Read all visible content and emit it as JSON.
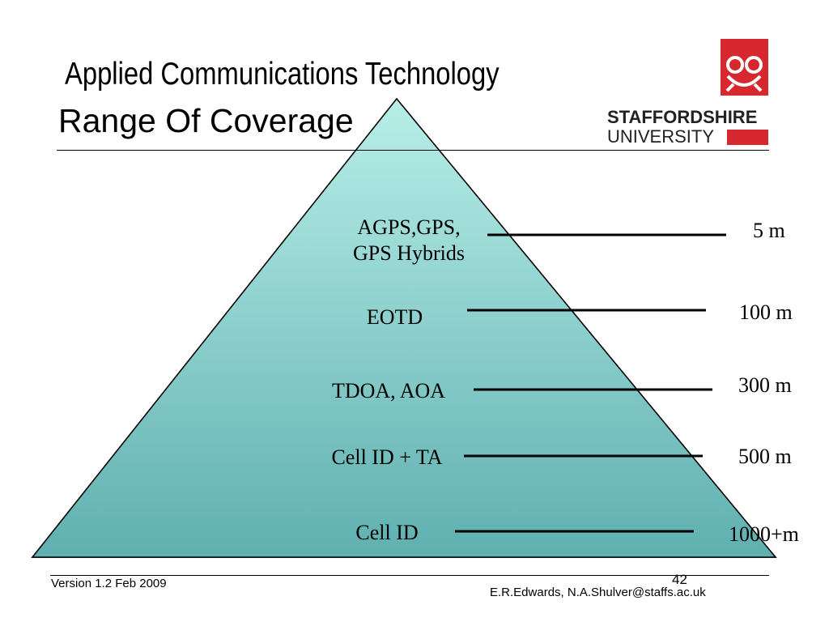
{
  "header": {
    "course_title": "Applied Communications Technology",
    "slide_title": "Range Of Coverage"
  },
  "logo": {
    "line1": "STAFFORDSHIRE",
    "line2": "UNIVERSITY",
    "brand_color": "#d7282f"
  },
  "pyramid": {
    "fill_top": "#b8eee8",
    "fill_bottom": "#5fb0b0",
    "tiers": [
      {
        "label_line1": "AGPS,GPS,",
        "label_line2": "GPS Hybrids",
        "range": "5 m"
      },
      {
        "label_line1": "EOTD",
        "range": "100 m"
      },
      {
        "label_line1": "TDOA, AOA",
        "range": "300 m"
      },
      {
        "label_line1": "Cell ID + TA",
        "range": "500 m"
      },
      {
        "label_line1": "Cell ID",
        "range": "1000+m"
      }
    ]
  },
  "footer": {
    "version": "Version 1.2  Feb 2009",
    "page_number": "42",
    "authors": "E.R.Edwards, N.A.Shulver@staffs.ac.uk"
  }
}
